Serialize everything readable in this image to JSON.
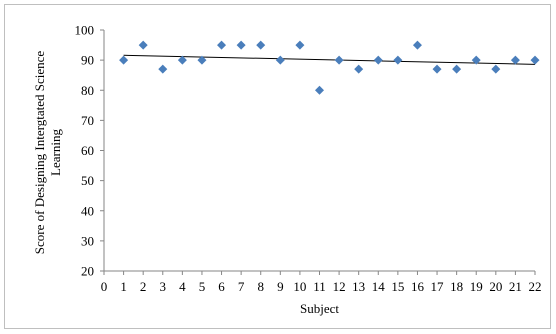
{
  "chart_data": {
    "type": "scatter",
    "title": "",
    "xlabel": "Subject",
    "ylabel_lines": [
      "Score of Designing  Intergtated Science",
      "Learning"
    ],
    "xlim": [
      0,
      22
    ],
    "ylim": [
      20,
      100
    ],
    "x_ticks": [
      0,
      1,
      2,
      3,
      4,
      5,
      6,
      7,
      8,
      9,
      10,
      11,
      12,
      13,
      14,
      15,
      16,
      17,
      18,
      19,
      20,
      21,
      22
    ],
    "y_ticks": [
      20,
      30,
      40,
      50,
      60,
      70,
      80,
      90,
      100
    ],
    "grid": false,
    "legend": "none",
    "series": [
      {
        "marker": "diamond",
        "color": "#4a7ebb",
        "points": [
          [
            1,
            90
          ],
          [
            2,
            95
          ],
          [
            3,
            87
          ],
          [
            4,
            90
          ],
          [
            5,
            90
          ],
          [
            6,
            95
          ],
          [
            7,
            95
          ],
          [
            8,
            95
          ],
          [
            9,
            90
          ],
          [
            10,
            95
          ],
          [
            11,
            80
          ],
          [
            12,
            90
          ],
          [
            13,
            87
          ],
          [
            14,
            90
          ],
          [
            15,
            90
          ],
          [
            16,
            95
          ],
          [
            17,
            87
          ],
          [
            18,
            87
          ],
          [
            19,
            90
          ],
          [
            20,
            87
          ],
          [
            21,
            90
          ],
          [
            22,
            90
          ]
        ]
      }
    ],
    "trendline": {
      "type": "linear",
      "from": [
        1,
        91.6
      ],
      "to": [
        22,
        88.6
      ],
      "color": "#000000"
    }
  }
}
